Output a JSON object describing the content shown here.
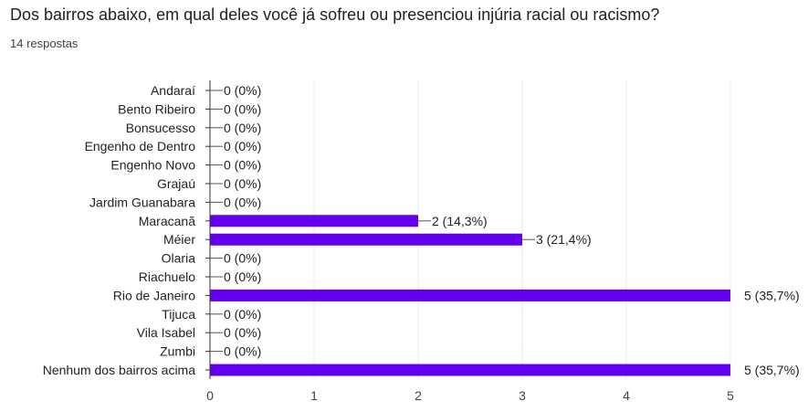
{
  "question": {
    "title": "Dos bairros abaixo, em qual deles você já sofreu ou presenciou injúria racial ou racismo?",
    "responses": "14 respostas"
  },
  "chart_data": {
    "type": "bar",
    "orientation": "horizontal",
    "categories": [
      "Andaraí",
      "Bento Ribeiro",
      "Bonsucesso",
      "Engenho de Dentro",
      "Engenho Novo",
      "Grajaú",
      "Jardim Guanabara",
      "Maracanã",
      "Méier",
      "Olaria",
      "Riachuelo",
      "Rio de Janeiro",
      "Tijuca",
      "Vila Isabel",
      "Zumbi",
      "Nenhum dos bairros acima"
    ],
    "values": [
      0,
      0,
      0,
      0,
      0,
      0,
      0,
      2,
      3,
      0,
      0,
      5,
      0,
      0,
      0,
      5
    ],
    "data_labels": [
      "0 (0%)",
      "0 (0%)",
      "0 (0%)",
      "0 (0%)",
      "0 (0%)",
      "0 (0%)",
      "0 (0%)",
      "2 (14,3%)",
      "3 (21,4%)",
      "0 (0%)",
      "0 (0%)",
      "5 (35,7%)",
      "0 (0%)",
      "0 (0%)",
      "0 (0%)",
      "5 (35,7%)"
    ],
    "xlim": [
      0,
      5
    ],
    "xticks": [
      "0",
      "1",
      "2",
      "3",
      "4",
      "5"
    ],
    "grid": true,
    "bar_color": "#6200ee"
  }
}
